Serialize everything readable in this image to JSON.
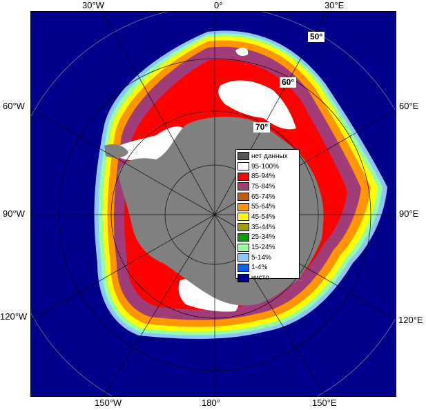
{
  "lon_labels": {
    "top": [
      "30°W",
      "0°",
      "30°E"
    ],
    "left": [
      "60°W",
      "90°W",
      "120°W"
    ],
    "right": [
      "60°E",
      "90°E",
      "120°E"
    ],
    "bottom": [
      "150°W",
      "180°",
      "150°E"
    ]
  },
  "lat_labels": [
    "50°",
    "60°",
    "70°"
  ],
  "legend": {
    "items": [
      {
        "label": "нет данных",
        "color": "#555555"
      },
      {
        "label": "95-100%",
        "color": "#ffffff"
      },
      {
        "label": "85-94%",
        "color": "#ff0000"
      },
      {
        "label": "75-84%",
        "color": "#a03c78"
      },
      {
        "label": "65-74%",
        "color": "#c85a00"
      },
      {
        "label": "55-64%",
        "color": "#ff9600"
      },
      {
        "label": "45-54%",
        "color": "#ffff00"
      },
      {
        "label": "35-44%",
        "color": "#a0a000"
      },
      {
        "label": "25-34%",
        "color": "#00a000"
      },
      {
        "label": "15-24%",
        "color": "#96ffa0"
      },
      {
        "label": "5-14%",
        "color": "#8cc8ff"
      },
      {
        "label": "1-4%",
        "color": "#0064ff"
      },
      {
        "label": "чисто",
        "color": "#00008c"
      }
    ]
  },
  "colors": {
    "ocean": "#00008c",
    "land": "#808080",
    "no_data": "#555555",
    "ice_95": "#ffffff",
    "ice_85": "#ff0000",
    "ice_75": "#a03c78",
    "ice_65": "#c85a00",
    "ice_55": "#ff9600",
    "ice_45": "#ffff00",
    "ice_15": "#96ffa0",
    "ice_5": "#8cc8ff"
  }
}
